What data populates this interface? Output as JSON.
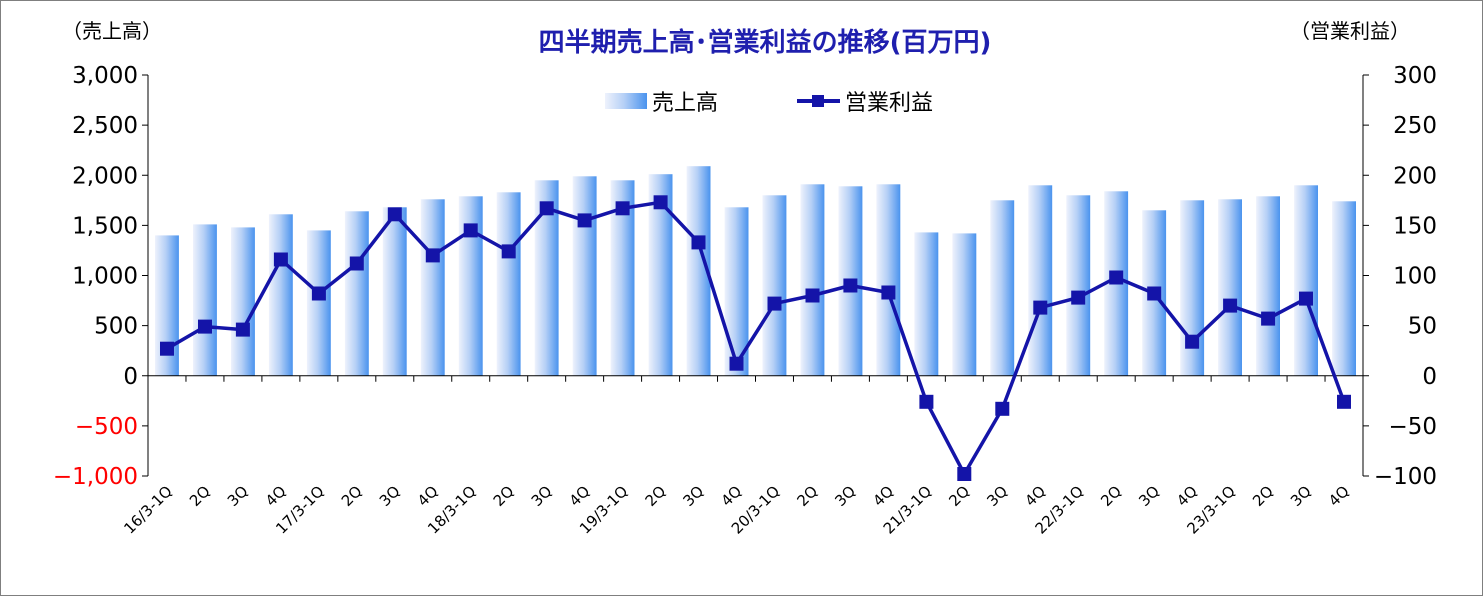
{
  "chart_data": {
    "type": "bar+line",
    "title": "四半期売上高･営業利益の推移(百万円)",
    "left_unit": "（売上高）",
    "right_unit": "（営業利益）",
    "categories": [
      "16/3-1Q",
      "2Q",
      "3Q",
      "4Q",
      "17/3-1Q",
      "2Q",
      "3Q",
      "4Q",
      "18/3-1Q",
      "2Q",
      "3Q",
      "4Q",
      "19/3-1Q",
      "2Q",
      "3Q",
      "4Q",
      "20/3-1Q",
      "2Q",
      "3Q",
      "4Q",
      "21/3-1Q",
      "2Q",
      "3Q",
      "4Q",
      "22/3-1Q",
      "2Q",
      "3Q",
      "4Q",
      "23/3-1Q",
      "2Q",
      "3Q",
      "4Q"
    ],
    "left_axis": {
      "ylim": [
        -1000,
        3000
      ],
      "ticks": [
        "3,000",
        "2,500",
        "2,000",
        "1,500",
        "1,000",
        "500",
        "0",
        "-500",
        "-1,000"
      ],
      "tick_values": [
        3000,
        2500,
        2000,
        1500,
        1000,
        500,
        0,
        -500,
        -1000
      ]
    },
    "right_axis": {
      "ylim": [
        -100,
        300
      ],
      "ticks": [
        "300",
        "250",
        "200",
        "150",
        "100",
        "50",
        "0",
        "-50",
        "-100"
      ],
      "tick_values": [
        300,
        250,
        200,
        150,
        100,
        50,
        0,
        -50,
        -100
      ]
    },
    "series": [
      {
        "name": "売上高",
        "type": "bar",
        "axis": "left",
        "values": [
          1400,
          1510,
          1480,
          1610,
          1450,
          1640,
          1680,
          1760,
          1790,
          1830,
          1950,
          1990,
          1950,
          2010,
          2090,
          1680,
          1800,
          1910,
          1890,
          1910,
          1430,
          1420,
          1750,
          1900,
          1800,
          1840,
          1650,
          1750,
          1760,
          1790,
          1900,
          1740
        ]
      },
      {
        "name": "営業利益",
        "type": "line",
        "axis": "right",
        "values": [
          27,
          49,
          46,
          116,
          82,
          112,
          161,
          120,
          145,
          124,
          167,
          155,
          167,
          173,
          133,
          12,
          72,
          80,
          90,
          83,
          -26,
          -98,
          -33,
          68,
          78,
          98,
          82,
          34,
          70,
          57,
          77,
          -26
        ]
      }
    ],
    "legend_position": "top-center",
    "grid": false,
    "colors": {
      "bar_light": "#e6ecfa",
      "bar_dark": "#4d95ee",
      "line": "#1414a8",
      "title": "#1f1fae",
      "negative_tick": "#ff0000"
    }
  }
}
